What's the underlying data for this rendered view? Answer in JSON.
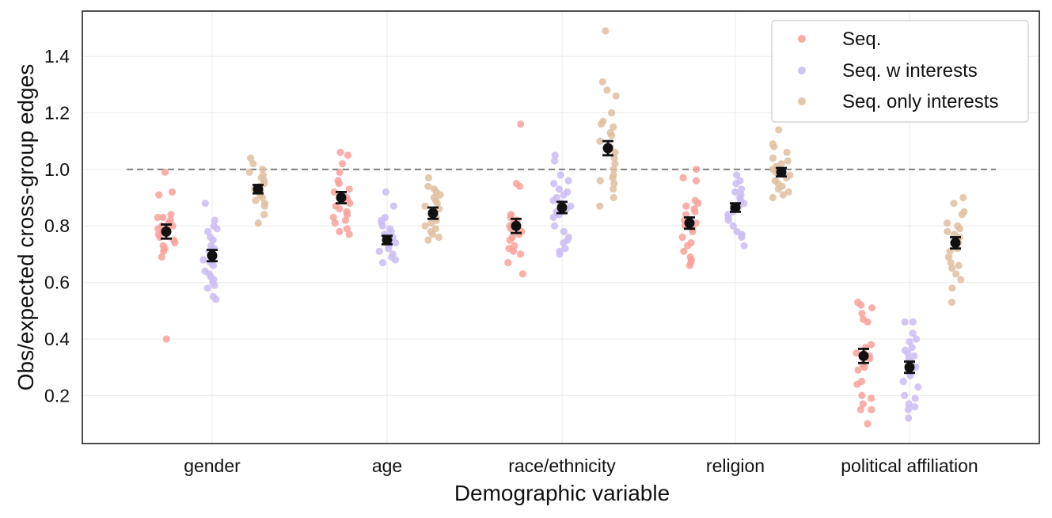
{
  "chart_data": {
    "type": "scatter",
    "xlabel": "Demographic variable",
    "ylabel": "Obs/expected cross-group edges",
    "ylim": [
      0.03,
      1.56
    ],
    "yticks": [
      0.2,
      0.4,
      0.6,
      0.8,
      1.0,
      1.2,
      1.4
    ],
    "ytick_labels": [
      "0.2",
      "0.4",
      "0.6",
      "0.8",
      "1.0",
      "1.2",
      "1.4"
    ],
    "categories": [
      "gender",
      "age",
      "race/ethnicity",
      "religion",
      "political affiliation"
    ],
    "reference_line": 1.0,
    "grid": true,
    "legend_position": "top-right",
    "series": [
      {
        "name": "Seq.",
        "color": "#f9a19a",
        "means": [
          0.78,
          0.9,
          0.8,
          0.81,
          0.34
        ],
        "errors": [
          0.025,
          0.02,
          0.025,
          0.02,
          0.025
        ],
        "points": [
          [
            0.99,
            0.92,
            0.91,
            0.84,
            0.83,
            0.83,
            0.82,
            0.81,
            0.8,
            0.8,
            0.79,
            0.78,
            0.77,
            0.76,
            0.75,
            0.74,
            0.73,
            0.72,
            0.71,
            0.69,
            0.4
          ],
          [
            1.06,
            1.05,
            1.02,
            0.99,
            0.96,
            0.95,
            0.93,
            0.92,
            0.91,
            0.9,
            0.89,
            0.88,
            0.87,
            0.86,
            0.85,
            0.84,
            0.83,
            0.82,
            0.81,
            0.79,
            0.78,
            0.77
          ],
          [
            1.16,
            0.95,
            0.94,
            0.84,
            0.83,
            0.82,
            0.81,
            0.8,
            0.79,
            0.78,
            0.77,
            0.76,
            0.75,
            0.73,
            0.72,
            0.71,
            0.7,
            0.67,
            0.63
          ],
          [
            1.0,
            0.97,
            0.96,
            0.89,
            0.88,
            0.87,
            0.86,
            0.85,
            0.84,
            0.82,
            0.81,
            0.8,
            0.79,
            0.78,
            0.76,
            0.74,
            0.73,
            0.71,
            0.69,
            0.68,
            0.67,
            0.66
          ],
          [
            0.53,
            0.52,
            0.51,
            0.49,
            0.47,
            0.46,
            0.38,
            0.37,
            0.35,
            0.34,
            0.33,
            0.31,
            0.3,
            0.29,
            0.25,
            0.24,
            0.2,
            0.19,
            0.17,
            0.15,
            0.15,
            0.1
          ]
        ]
      },
      {
        "name": "Seq. w interests",
        "color": "#cbbcf5",
        "means": [
          0.695,
          0.75,
          0.865,
          0.865,
          0.3
        ],
        "errors": [
          0.02,
          0.015,
          0.02,
          0.015,
          0.02
        ],
        "points": [
          [
            0.88,
            0.82,
            0.8,
            0.79,
            0.78,
            0.76,
            0.75,
            0.73,
            0.72,
            0.71,
            0.7,
            0.69,
            0.68,
            0.67,
            0.66,
            0.64,
            0.63,
            0.62,
            0.61,
            0.6,
            0.59,
            0.58,
            0.55,
            0.54
          ],
          [
            0.92,
            0.87,
            0.83,
            0.82,
            0.81,
            0.8,
            0.79,
            0.78,
            0.77,
            0.76,
            0.75,
            0.74,
            0.73,
            0.72,
            0.71,
            0.7,
            0.69,
            0.68,
            0.67
          ],
          [
            1.05,
            1.03,
            0.98,
            0.96,
            0.95,
            0.93,
            0.92,
            0.91,
            0.9,
            0.89,
            0.88,
            0.87,
            0.86,
            0.85,
            0.84,
            0.83,
            0.8,
            0.78,
            0.76,
            0.75,
            0.74,
            0.72,
            0.71,
            0.7
          ],
          [
            0.98,
            0.96,
            0.95,
            0.93,
            0.92,
            0.91,
            0.9,
            0.89,
            0.88,
            0.87,
            0.86,
            0.85,
            0.84,
            0.83,
            0.82,
            0.8,
            0.78,
            0.77,
            0.76,
            0.73
          ],
          [
            0.46,
            0.46,
            0.42,
            0.4,
            0.39,
            0.37,
            0.36,
            0.35,
            0.34,
            0.33,
            0.32,
            0.31,
            0.3,
            0.29,
            0.28,
            0.27,
            0.25,
            0.23,
            0.2,
            0.19,
            0.17,
            0.16,
            0.15,
            0.12
          ]
        ]
      },
      {
        "name": "Seq. only interests",
        "color": "#dfc0a0",
        "means": [
          0.93,
          0.845,
          1.075,
          0.99,
          0.74
        ],
        "errors": [
          0.015,
          0.02,
          0.025,
          0.015,
          0.02
        ],
        "points": [
          [
            1.04,
            1.02,
            1.0,
            0.99,
            0.98,
            0.97,
            0.96,
            0.95,
            0.94,
            0.93,
            0.92,
            0.91,
            0.9,
            0.89,
            0.88,
            0.87,
            0.84,
            0.81
          ],
          [
            0.97,
            0.94,
            0.93,
            0.92,
            0.91,
            0.9,
            0.89,
            0.88,
            0.87,
            0.86,
            0.85,
            0.84,
            0.83,
            0.82,
            0.81,
            0.8,
            0.79,
            0.78,
            0.77,
            0.76,
            0.75
          ],
          [
            1.49,
            1.31,
            1.28,
            1.26,
            1.2,
            1.17,
            1.16,
            1.15,
            1.13,
            1.12,
            1.1,
            1.08,
            1.06,
            1.04,
            1.02,
            1.0,
            0.98,
            0.97,
            0.96,
            0.95,
            0.93,
            0.9,
            0.87
          ],
          [
            1.14,
            1.09,
            1.08,
            1.06,
            1.04,
            1.03,
            1.02,
            1.01,
            1.0,
            0.99,
            0.98,
            0.97,
            0.96,
            0.95,
            0.94,
            0.93,
            0.92,
            0.91,
            0.9
          ],
          [
            0.9,
            0.88,
            0.85,
            0.84,
            0.81,
            0.8,
            0.79,
            0.78,
            0.77,
            0.76,
            0.75,
            0.74,
            0.72,
            0.71,
            0.69,
            0.67,
            0.66,
            0.65,
            0.63,
            0.61,
            0.58,
            0.53
          ]
        ]
      }
    ]
  }
}
